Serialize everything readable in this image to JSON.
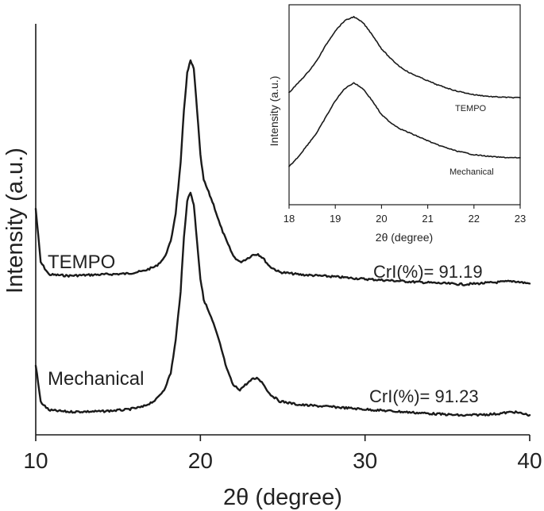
{
  "chart_data": [
    {
      "type": "line",
      "panel": "main",
      "xlabel": "2θ (degree)",
      "ylabel": "Intensity (a.u.)",
      "xlim": [
        10,
        40
      ],
      "ylim": [
        0,
        100
      ],
      "xticks": [
        10,
        20,
        30,
        40
      ],
      "y_ticks_shown": false,
      "grid": false,
      "series": [
        {
          "name": "TEMPO",
          "annotation": "CrI(%)= 91.19",
          "points": [
            [
              10,
              55
            ],
            [
              10.3,
              42
            ],
            [
              10.8,
              39
            ],
            [
              12,
              38.7
            ],
            [
              14,
              39
            ],
            [
              15.5,
              39.2
            ],
            [
              16.5,
              39.8
            ],
            [
              17.3,
              41
            ],
            [
              17.8,
              43
            ],
            [
              18.2,
              47
            ],
            [
              18.5,
              54
            ],
            [
              18.8,
              66
            ],
            [
              19.0,
              79
            ],
            [
              19.2,
              88
            ],
            [
              19.4,
              91
            ],
            [
              19.6,
              89
            ],
            [
              19.8,
              79
            ],
            [
              20.0,
              68
            ],
            [
              20.2,
              62
            ],
            [
              20.5,
              59
            ],
            [
              20.8,
              56
            ],
            [
              21.2,
              51
            ],
            [
              21.6,
              47
            ],
            [
              22.0,
              43.5
            ],
            [
              22.4,
              42
            ],
            [
              22.8,
              42.8
            ],
            [
              23.2,
              43.8
            ],
            [
              23.5,
              44
            ],
            [
              23.8,
              43
            ],
            [
              24.2,
              41
            ],
            [
              24.8,
              39.6
            ],
            [
              26,
              39
            ],
            [
              28,
              38.5
            ],
            [
              30,
              37.9
            ],
            [
              33,
              37.2
            ],
            [
              36,
              36.6
            ],
            [
              38,
              37.1
            ],
            [
              39,
              37.4
            ],
            [
              40,
              36.8
            ]
          ]
        },
        {
          "name": "Mechanical",
          "annotation": "CrI(%)= 91.23",
          "points": [
            [
              10,
              17
            ],
            [
              10.3,
              8
            ],
            [
              10.8,
              6
            ],
            [
              12,
              5.6
            ],
            [
              14,
              5.7
            ],
            [
              15.5,
              6.1
            ],
            [
              16.5,
              6.8
            ],
            [
              17.3,
              8.5
            ],
            [
              17.8,
              11
            ],
            [
              18.2,
              15
            ],
            [
              18.5,
              23
            ],
            [
              18.8,
              35
            ],
            [
              19.0,
              48
            ],
            [
              19.2,
              57
            ],
            [
              19.4,
              59
            ],
            [
              19.6,
              56
            ],
            [
              19.8,
              47
            ],
            [
              20.0,
              38
            ],
            [
              20.2,
              33
            ],
            [
              20.5,
              30
            ],
            [
              20.8,
              27
            ],
            [
              21.2,
              22
            ],
            [
              21.6,
              16
            ],
            [
              22.0,
              12
            ],
            [
              22.4,
              11
            ],
            [
              22.8,
              12.4
            ],
            [
              23.2,
              13.6
            ],
            [
              23.5,
              13.8
            ],
            [
              23.8,
              12.5
            ],
            [
              24.2,
              10
            ],
            [
              24.8,
              8.2
            ],
            [
              26,
              7.3
            ],
            [
              28,
              6.8
            ],
            [
              30,
              6.2
            ],
            [
              33,
              5.4
            ],
            [
              36,
              4.7
            ],
            [
              38,
              5.1
            ],
            [
              39,
              5.6
            ],
            [
              40,
              4.8
            ]
          ]
        }
      ]
    },
    {
      "type": "line",
      "panel": "inset",
      "xlabel": "2θ (degree)",
      "ylabel": "Intensity (a.u.)",
      "xlim": [
        18,
        23
      ],
      "ylim": [
        0,
        100
      ],
      "xticks": [
        18,
        19,
        20,
        21,
        22,
        23
      ],
      "y_ticks_shown": false,
      "grid": false,
      "series": [
        {
          "name": "TEMPO",
          "points": [
            [
              18,
              56
            ],
            [
              18.2,
              61
            ],
            [
              18.4,
              66
            ],
            [
              18.6,
              72
            ],
            [
              18.8,
              80
            ],
            [
              19.0,
              87
            ],
            [
              19.2,
              92
            ],
            [
              19.4,
              94
            ],
            [
              19.6,
              91
            ],
            [
              19.8,
              85
            ],
            [
              20.0,
              78
            ],
            [
              20.2,
              73
            ],
            [
              20.4,
              69
            ],
            [
              20.6,
              66
            ],
            [
              20.8,
              64
            ],
            [
              21.0,
              62
            ],
            [
              21.2,
              60
            ],
            [
              21.4,
              58.5
            ],
            [
              21.6,
              57
            ],
            [
              21.8,
              56
            ],
            [
              22.0,
              55
            ],
            [
              22.2,
              54.5
            ],
            [
              22.4,
              54
            ],
            [
              22.6,
              53.8
            ],
            [
              22.8,
              53.6
            ],
            [
              23,
              53.5
            ]
          ]
        },
        {
          "name": "Mechanical",
          "points": [
            [
              18,
              19
            ],
            [
              18.2,
              24
            ],
            [
              18.4,
              30
            ],
            [
              18.6,
              36
            ],
            [
              18.8,
              44
            ],
            [
              19.0,
              52
            ],
            [
              19.2,
              58
            ],
            [
              19.4,
              61
            ],
            [
              19.6,
              58
            ],
            [
              19.8,
              52
            ],
            [
              20.0,
              45
            ],
            [
              20.2,
              41
            ],
            [
              20.4,
              38
            ],
            [
              20.6,
              36
            ],
            [
              20.8,
              34
            ],
            [
              21.0,
              32
            ],
            [
              21.2,
              30
            ],
            [
              21.4,
              28.5
            ],
            [
              21.6,
              27
            ],
            [
              21.8,
              26
            ],
            [
              22.0,
              25
            ],
            [
              22.2,
              24.5
            ],
            [
              22.4,
              24
            ],
            [
              22.6,
              23.7
            ],
            [
              22.8,
              23.5
            ],
            [
              23,
              23.5
            ]
          ]
        }
      ]
    }
  ]
}
